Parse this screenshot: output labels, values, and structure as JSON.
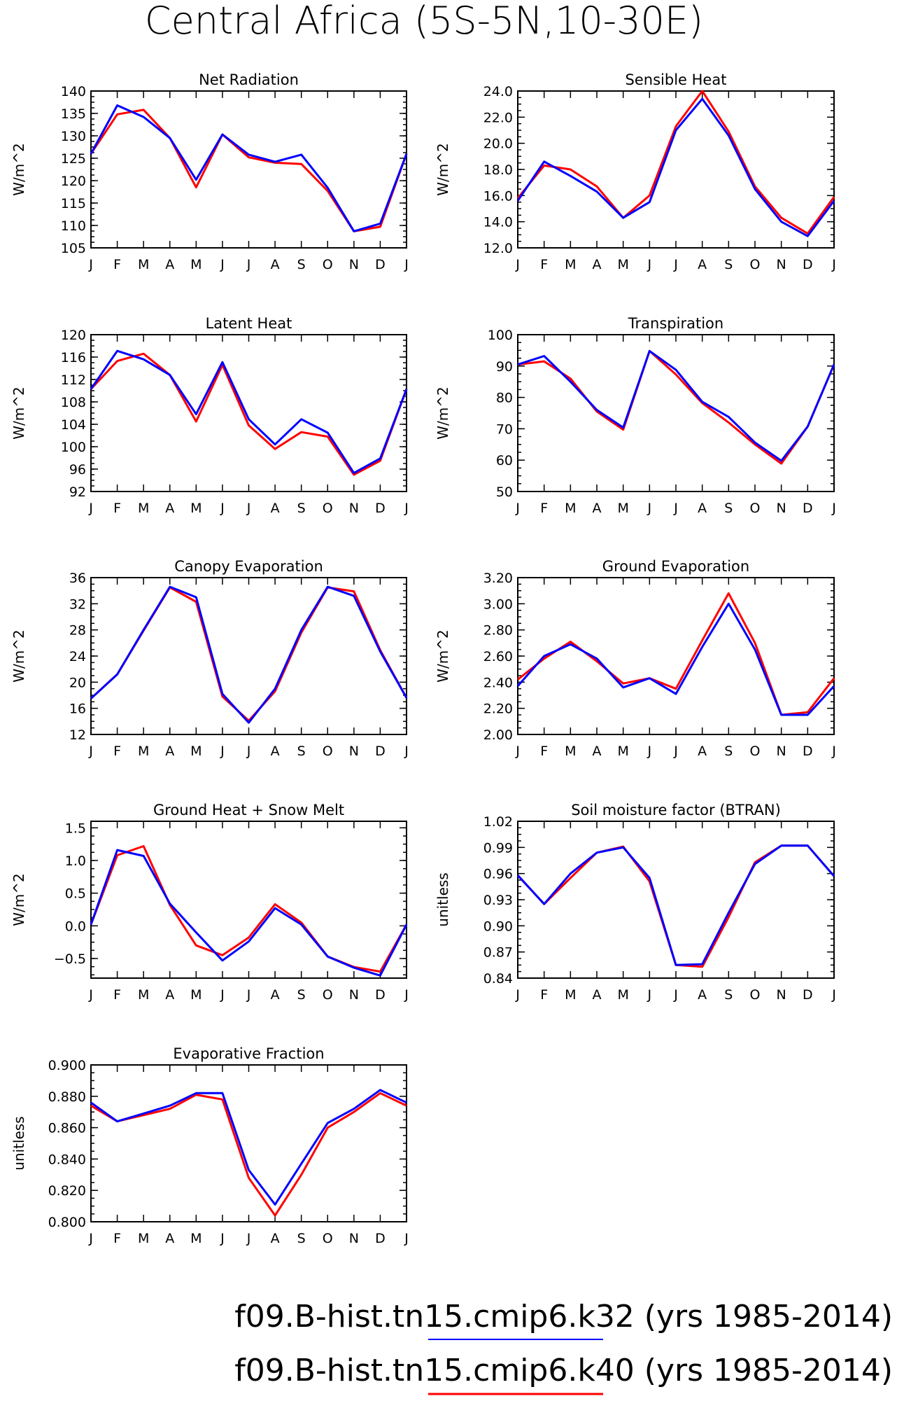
{
  "figure": {
    "title": "Central Africa (5S-5N,10-30E)",
    "months": [
      "J",
      "F",
      "M",
      "A",
      "M",
      "J",
      "J",
      "A",
      "S",
      "O",
      "N",
      "D",
      "J"
    ]
  },
  "legend": [
    {
      "label": "f09.B-hist.tn15.cmip6.k32 (yrs 1985-2014)",
      "color": "#0000ff"
    },
    {
      "label": "f09.B-hist.tn15.cmip6.k40 (yrs 1985-2014)",
      "color": "#ff0000"
    }
  ],
  "colors": {
    "k32": "#0000ff",
    "k40": "#ff0000"
  },
  "chart_data": [
    {
      "type": "line",
      "title": "Net Radiation",
      "ylabel": "W/m^2",
      "ylim": [
        105,
        140
      ],
      "yticks": [
        105,
        110,
        115,
        120,
        125,
        130,
        135,
        140
      ],
      "ytick_labels": [
        "105",
        "110",
        "115",
        "120",
        "125",
        "130",
        "135",
        "140"
      ],
      "series": [
        {
          "name": "k40",
          "color": "#ff0000",
          "values": [
            126,
            134.8,
            135.8,
            129.5,
            118.5,
            130.3,
            125.2,
            124,
            123.7,
            117.7,
            108.7,
            109.7,
            126
          ]
        },
        {
          "name": "k32",
          "color": "#0000ff",
          "values": [
            126,
            136.8,
            134.2,
            129.5,
            120.2,
            130.3,
            125.8,
            124.2,
            125.8,
            118.4,
            108.7,
            110.4,
            126
          ]
        }
      ]
    },
    {
      "type": "line",
      "title": "Sensible Heat",
      "ylabel": "W/m^2",
      "ylim": [
        12,
        24
      ],
      "yticks": [
        12,
        14,
        16,
        18,
        20,
        22,
        24
      ],
      "ytick_labels": [
        "12.0",
        "14.0",
        "16.0",
        "18.0",
        "20.0",
        "22.0",
        "24.0"
      ],
      "series": [
        {
          "name": "k40",
          "color": "#ff0000",
          "values": [
            15.8,
            18.3,
            18.0,
            16.7,
            14.3,
            16.0,
            21.3,
            24.0,
            20.9,
            16.7,
            14.3,
            13.1,
            15.9
          ]
        },
        {
          "name": "k32",
          "color": "#0000ff",
          "values": [
            15.6,
            18.6,
            17.5,
            16.3,
            14.3,
            15.5,
            21.0,
            23.4,
            20.6,
            16.5,
            14.0,
            12.9,
            15.6
          ]
        }
      ]
    },
    {
      "type": "line",
      "title": "Latent Heat",
      "ylabel": "W/m^2",
      "ylim": [
        92,
        120
      ],
      "yticks": [
        92,
        96,
        100,
        104,
        108,
        112,
        116,
        120
      ],
      "ytick_labels": [
        "92",
        "96",
        "100",
        "104",
        "108",
        "112",
        "116",
        "120"
      ],
      "series": [
        {
          "name": "k40",
          "color": "#ff0000",
          "values": [
            110.3,
            115.3,
            116.6,
            112.8,
            104.5,
            114.6,
            103.8,
            99.6,
            102.6,
            101.8,
            95.0,
            97.5,
            110.3
          ]
        },
        {
          "name": "k32",
          "color": "#0000ff",
          "values": [
            110.3,
            117.1,
            115.6,
            112.8,
            105.8,
            115.1,
            104.9,
            100.4,
            104.9,
            102.5,
            95.3,
            97.9,
            110.3
          ]
        }
      ]
    },
    {
      "type": "line",
      "title": "Transpiration",
      "ylabel": "W/m^2",
      "ylim": [
        50,
        100
      ],
      "yticks": [
        50,
        60,
        70,
        80,
        90,
        100
      ],
      "ytick_labels": [
        "50",
        "60",
        "70",
        "80",
        "90",
        "100"
      ],
      "series": [
        {
          "name": "k40",
          "color": "#ff0000",
          "values": [
            90.5,
            91.5,
            86.0,
            75.5,
            69.7,
            94.8,
            87.3,
            78.2,
            72.0,
            65.0,
            58.9,
            70.7,
            90.5
          ]
        },
        {
          "name": "k32",
          "color": "#0000ff",
          "values": [
            90.5,
            93.2,
            85.0,
            76.0,
            70.4,
            94.8,
            88.8,
            78.6,
            73.8,
            65.6,
            59.8,
            70.7,
            90.5
          ]
        }
      ]
    },
    {
      "type": "line",
      "title": "Canopy Evaporation",
      "ylabel": "W/m^2",
      "ylim": [
        12,
        36
      ],
      "yticks": [
        12,
        16,
        20,
        24,
        28,
        32,
        36
      ],
      "ytick_labels": [
        "12",
        "16",
        "20",
        "24",
        "28",
        "32",
        "36"
      ],
      "series": [
        {
          "name": "k40",
          "color": "#ff0000",
          "values": [
            17.5,
            21.2,
            27.9,
            34.5,
            32.3,
            17.8,
            14.1,
            18.6,
            27.6,
            34.5,
            33.9,
            24.9,
            17.6
          ]
        },
        {
          "name": "k32",
          "color": "#0000ff",
          "values": [
            17.5,
            21.2,
            28.0,
            34.6,
            33.0,
            18.2,
            13.8,
            19.0,
            28.0,
            34.6,
            33.2,
            24.7,
            17.6
          ]
        }
      ]
    },
    {
      "type": "line",
      "title": "Ground Evaporation",
      "ylabel": "W/m^2",
      "ylim": [
        2.0,
        3.2
      ],
      "yticks": [
        2.0,
        2.2,
        2.4,
        2.6,
        2.8,
        3.0,
        3.2
      ],
      "ytick_labels": [
        "2.00",
        "2.20",
        "2.40",
        "2.60",
        "2.80",
        "3.00",
        "3.20"
      ],
      "series": [
        {
          "name": "k40",
          "color": "#ff0000",
          "values": [
            2.42,
            2.58,
            2.71,
            2.56,
            2.39,
            2.43,
            2.35,
            2.72,
            3.08,
            2.7,
            2.15,
            2.17,
            2.43
          ]
        },
        {
          "name": "k32",
          "color": "#0000ff",
          "values": [
            2.37,
            2.6,
            2.69,
            2.58,
            2.36,
            2.43,
            2.31,
            2.67,
            3.0,
            2.65,
            2.15,
            2.15,
            2.37
          ]
        }
      ]
    },
    {
      "type": "line",
      "title": "Ground Heat + Snow Melt",
      "ylabel": "W/m^2",
      "ylim": [
        -0.8,
        1.6
      ],
      "yticks": [
        -0.5,
        0.0,
        0.5,
        1.0,
        1.5
      ],
      "ytick_labels": [
        "−0.5",
        "0.0",
        "0.5",
        "1.0",
        "1.5"
      ],
      "series": [
        {
          "name": "k40",
          "color": "#ff0000",
          "values": [
            0.02,
            1.08,
            1.22,
            0.32,
            -0.3,
            -0.45,
            -0.18,
            0.33,
            0.05,
            -0.47,
            -0.63,
            -0.7,
            0.02
          ]
        },
        {
          "name": "k32",
          "color": "#0000ff",
          "values": [
            0.02,
            1.16,
            1.07,
            0.34,
            -0.1,
            -0.53,
            -0.24,
            0.27,
            0.02,
            -0.47,
            -0.64,
            -0.76,
            0.02
          ]
        }
      ]
    },
    {
      "type": "line",
      "title": "Soil moisture factor (BTRAN)",
      "ylabel": "unitless",
      "ylim": [
        0.84,
        1.02
      ],
      "yticks": [
        0.84,
        0.87,
        0.9,
        0.93,
        0.96,
        0.99,
        1.02
      ],
      "ytick_labels": [
        "0.84",
        "0.87",
        "0.90",
        "0.93",
        "0.96",
        "0.99",
        "1.02"
      ],
      "series": [
        {
          "name": "k40",
          "color": "#ff0000",
          "values": [
            0.958,
            0.925,
            0.955,
            0.984,
            0.991,
            0.951,
            0.855,
            0.853,
            0.91,
            0.973,
            0.992,
            0.992,
            0.957
          ]
        },
        {
          "name": "k32",
          "color": "#0000ff",
          "values": [
            0.958,
            0.925,
            0.96,
            0.984,
            0.99,
            0.955,
            0.855,
            0.856,
            0.915,
            0.971,
            0.992,
            0.992,
            0.957
          ]
        }
      ]
    },
    {
      "type": "line",
      "title": "Evaporative Fraction",
      "ylabel": "unitless",
      "ylim": [
        0.8,
        0.9
      ],
      "yticks": [
        0.8,
        0.82,
        0.84,
        0.86,
        0.88,
        0.9
      ],
      "ytick_labels": [
        "0.800",
        "0.820",
        "0.840",
        "0.860",
        "0.880",
        "0.900"
      ],
      "series": [
        {
          "name": "k40",
          "color": "#ff0000",
          "values": [
            0.874,
            0.864,
            0.868,
            0.872,
            0.881,
            0.878,
            0.828,
            0.804,
            0.83,
            0.86,
            0.87,
            0.882,
            0.874
          ]
        },
        {
          "name": "k32",
          "color": "#0000ff",
          "values": [
            0.876,
            0.864,
            0.869,
            0.874,
            0.882,
            0.882,
            0.833,
            0.811,
            0.837,
            0.863,
            0.872,
            0.884,
            0.876
          ]
        }
      ]
    }
  ]
}
